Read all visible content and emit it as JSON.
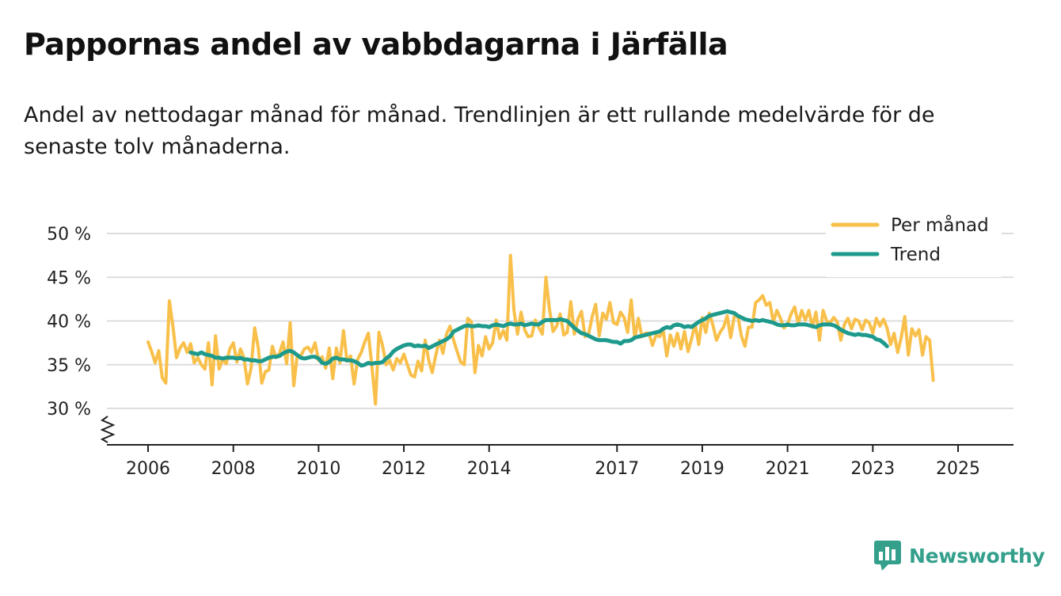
{
  "title": "Pappornas andel av vabbdagarna i Järfälla",
  "subtitle": "Andel av nettodagar månad för månad. Trendlinjen är ett rullande medelvärde för de senaste tolv månaderna.",
  "brand": {
    "name": "Newsworthy",
    "icon": "newsworthy-logo-icon"
  },
  "colors": {
    "monthly": "#f8c04a",
    "trend": "#1e9a8c",
    "grid": "#dddddd",
    "axis": "#222222",
    "brand": "#34a08c"
  },
  "chart_data": {
    "type": "line",
    "title": "Pappornas andel av vabbdagarna i Järfälla",
    "xlabel": "",
    "ylabel": "",
    "ylim": [
      25.5,
      50
    ],
    "xlim": [
      2005.75,
      2026.25
    ],
    "y_ticks": [
      30,
      35,
      40,
      45,
      50
    ],
    "y_tick_labels": [
      "30 %",
      "35 %",
      "40 %",
      "45 %",
      "50 %"
    ],
    "x_ticks": [
      2006,
      2008,
      2010,
      2012,
      2014,
      2017,
      2019,
      2021,
      2023,
      2025
    ],
    "x_tick_labels": [
      "2006",
      "2008",
      "2010",
      "2012",
      "2014",
      "2017",
      "2019",
      "2021",
      "2023",
      "2025"
    ],
    "axis_break": true,
    "grid": true,
    "legend_position": "top-right",
    "series": [
      {
        "name": "Per månad",
        "color": "#f8c04a",
        "start": 2006.0,
        "step_months": 1,
        "values": [
          37.6,
          36.5,
          35.2,
          36.6,
          33.5,
          32.9,
          42.3,
          39.4,
          35.8,
          36.9,
          37.5,
          36.4,
          37.4,
          35.2,
          35.8,
          35.0,
          34.5,
          37.5,
          32.7,
          38.3,
          34.5,
          35.6,
          35.1,
          36.8,
          37.5,
          35.3,
          36.8,
          35.8,
          32.8,
          34.6,
          39.2,
          37.0,
          32.9,
          34.2,
          34.4,
          37.1,
          35.8,
          36.3,
          37.6,
          35.1,
          39.8,
          32.6,
          36.1,
          36.0,
          36.8,
          37.0,
          36.4,
          37.5,
          35.5,
          35.9,
          34.6,
          36.9,
          33.4,
          36.9,
          35.2,
          38.9,
          35.4,
          36.0,
          32.8,
          35.6,
          36.4,
          37.6,
          38.6,
          34.8,
          30.5,
          38.7,
          37.2,
          35.0,
          35.5,
          34.4,
          35.7,
          35.2,
          36.2,
          35.0,
          33.8,
          33.6,
          35.4,
          34.3,
          37.8,
          35.5,
          34.1,
          36.1,
          37.8,
          36.3,
          38.5,
          39.4,
          37.8,
          36.5,
          35.3,
          35.0,
          40.3,
          39.9,
          34.1,
          37.2,
          36.0,
          38.2,
          36.8,
          37.5,
          40.1,
          38.0,
          38.9,
          37.8,
          47.5,
          41.2,
          38.5,
          41.0,
          39.0,
          38.2,
          38.3,
          40.1,
          39.2,
          38.5,
          45.0,
          41.3,
          38.8,
          39.4,
          40.8,
          38.4,
          38.7,
          42.2,
          38.5,
          40.2,
          41.1,
          38.2,
          38.5,
          40.5,
          41.9,
          38.3,
          40.9,
          40.2,
          42.1,
          39.8,
          39.6,
          41.0,
          40.4,
          38.7,
          42.4,
          38.0,
          40.3,
          38.2,
          38.6,
          38.6,
          37.2,
          38.4,
          38.2,
          38.9,
          36.0,
          38.4,
          37.1,
          38.6,
          36.8,
          38.8,
          36.5,
          38.0,
          39.6,
          37.3,
          40.4,
          38.7,
          40.9,
          39.5,
          37.8,
          38.7,
          39.3,
          40.6,
          38.1,
          40.5,
          40.6,
          38.3,
          37.1,
          39.3,
          39.3,
          42.1,
          42.4,
          42.9,
          41.8,
          42.1,
          39.9,
          41.2,
          40.3,
          39.2,
          39.6,
          40.8,
          41.6,
          39.7,
          41.2,
          40.1,
          41.2,
          39.3,
          41.0,
          37.8,
          41.2,
          40.0,
          39.8,
          40.4,
          39.9,
          37.8,
          39.6,
          40.3,
          39.1,
          40.2,
          40.0,
          39.0,
          40.1,
          39.8,
          38.6,
          40.3,
          39.4,
          40.2,
          39.2,
          37.3,
          38.6,
          36.4,
          38.1,
          40.5,
          36.1,
          39.1,
          38.3,
          39.0,
          36.1,
          38.2,
          37.8,
          33.2
        ]
      },
      {
        "name": "Trend",
        "color": "#1e9a8c",
        "start": 2007.0,
        "step_months": 1,
        "values": [
          36.4,
          36.3,
          36.2,
          36.4,
          36.2,
          36.1,
          36.0,
          35.8,
          35.8,
          35.7,
          35.8,
          35.8,
          35.8,
          35.7,
          35.8,
          35.6,
          35.6,
          35.5,
          35.5,
          35.4,
          35.4,
          35.6,
          35.8,
          35.9,
          35.9,
          36.0,
          36.3,
          36.5,
          36.6,
          36.4,
          36.1,
          35.8,
          35.7,
          35.8,
          35.9,
          35.9,
          35.7,
          35.2,
          35.1,
          35.3,
          35.7,
          35.8,
          35.6,
          35.6,
          35.5,
          35.5,
          35.4,
          35.2,
          34.9,
          35.0,
          35.2,
          35.1,
          35.2,
          35.2,
          35.3,
          35.7,
          36.0,
          36.5,
          36.8,
          37.0,
          37.2,
          37.3,
          37.3,
          37.1,
          37.2,
          37.1,
          37.2,
          36.9,
          37.1,
          37.3,
          37.5,
          37.7,
          37.9,
          38.2,
          38.8,
          39.0,
          39.2,
          39.4,
          39.5,
          39.4,
          39.4,
          39.5,
          39.4,
          39.4,
          39.3,
          39.5,
          39.6,
          39.5,
          39.4,
          39.6,
          39.7,
          39.6,
          39.6,
          39.7,
          39.5,
          39.6,
          39.7,
          39.6,
          39.6,
          39.9,
          40.1,
          40.1,
          40.1,
          40.1,
          40.2,
          40.1,
          40.0,
          39.6,
          39.2,
          38.9,
          38.6,
          38.5,
          38.3,
          38.1,
          37.9,
          37.8,
          37.8,
          37.8,
          37.7,
          37.6,
          37.6,
          37.4,
          37.7,
          37.7,
          37.8,
          38.1,
          38.2,
          38.3,
          38.4,
          38.5,
          38.6,
          38.7,
          38.8,
          39.1,
          39.3,
          39.2,
          39.5,
          39.6,
          39.5,
          39.3,
          39.4,
          39.3,
          39.6,
          39.9,
          40.1,
          40.3,
          40.6,
          40.7,
          40.8,
          40.9,
          41.0,
          41.1,
          41.0,
          40.9,
          40.6,
          40.4,
          40.2,
          40.1,
          40.0,
          40.1,
          40.0,
          40.1,
          40.0,
          39.9,
          39.8,
          39.6,
          39.5,
          39.5,
          39.6,
          39.5,
          39.5,
          39.6,
          39.6,
          39.6,
          39.5,
          39.4,
          39.3,
          39.5,
          39.6,
          39.6,
          39.6,
          39.5,
          39.3,
          39.0,
          38.8,
          38.6,
          38.5,
          38.4,
          38.5,
          38.4,
          38.4,
          38.3,
          38.2,
          37.9,
          37.8,
          37.5,
          37.1
        ]
      }
    ]
  }
}
